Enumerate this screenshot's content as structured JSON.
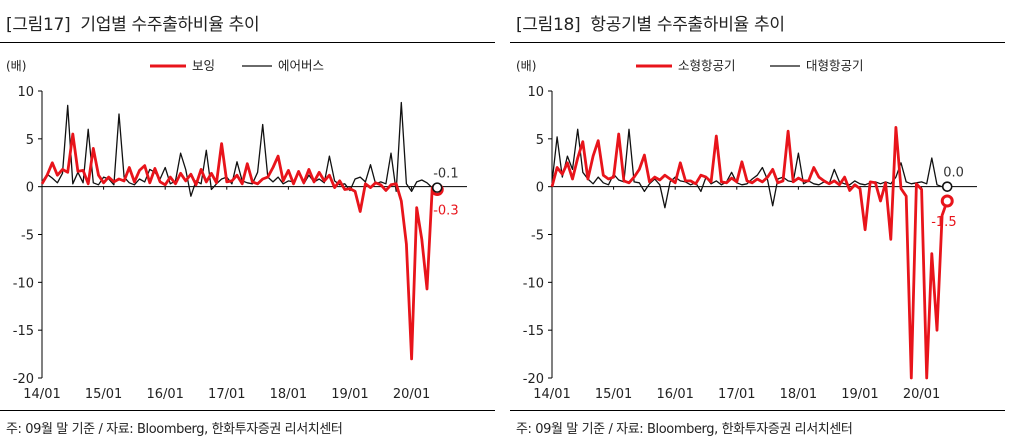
{
  "panels": [
    {
      "fig": "[그림17]",
      "title": "기업별 수주출하비율 추이",
      "note": "주: 09월 말 기준  / 자료: Bloomberg, 한화투자증권 리서치센터"
    },
    {
      "fig": "[그림18]",
      "title": "항공기별 수주출하비율 추이",
      "note": "주: 09월 말 기준  / 자료: Bloomberg, 한화투자증권 리서치센터"
    }
  ],
  "chart_data": [
    {
      "type": "line",
      "yunit": "(배)",
      "ylim": [
        -20,
        10
      ],
      "yticks": [
        10,
        5,
        0,
        -5,
        -10,
        -15,
        -20
      ],
      "xticks": [
        "14/01",
        "15/01",
        "16/01",
        "17/01",
        "18/01",
        "19/01",
        "20/01"
      ],
      "x_start": "2014-01",
      "legend": "top",
      "series": [
        {
          "name": "보잉",
          "color": "#e8141b",
          "end_label": "-0.3",
          "values": [
            0.3,
            1.2,
            2.5,
            1.2,
            1.8,
            1.5,
            5.5,
            1.6,
            1.7,
            0.3,
            4.0,
            1.2,
            0.4,
            1.0,
            0.5,
            0.8,
            0.6,
            2.0,
            0.5,
            1.7,
            2.2,
            0.4,
            1.9,
            0.5,
            0.2,
            1.0,
            0.3,
            1.4,
            0.6,
            1.3,
            0.2,
            1.8,
            0.5,
            1.4,
            0.4,
            4.5,
            0.5,
            0.6,
            1.2,
            0.3,
            2.4,
            0.5,
            0.3,
            0.8,
            1.0,
            2.0,
            3.2,
            0.6,
            1.7,
            0.3,
            1.6,
            0.4,
            1.8,
            0.5,
            1.5,
            0.6,
            1.2,
            -0.1,
            0.6,
            -0.3,
            -0.2,
            -0.5,
            -2.6,
            0.3,
            -0.1,
            0.4,
            0.2,
            -0.4,
            0.2,
            0.3,
            -1.5,
            -6.0,
            -18.0,
            -2.2,
            -5.5,
            -10.7,
            -0.4,
            -0.3
          ]
        },
        {
          "name": "에어버스",
          "color": "#111111",
          "end_label": "-0.1",
          "values": [
            0.5,
            1.3,
            0.9,
            0.4,
            1.4,
            8.5,
            0.3,
            1.5,
            0.4,
            6.0,
            0.4,
            0.2,
            1.0,
            0.8,
            0.2,
            7.6,
            1.0,
            0.4,
            0.2,
            0.8,
            0.5,
            1.8,
            1.5,
            0.8,
            2.0,
            0.3,
            0.6,
            3.5,
            1.8,
            -1.0,
            0.6,
            0.3,
            3.8,
            -0.3,
            0.3,
            0.8,
            1.0,
            0.3,
            2.6,
            0.6,
            0.4,
            0.3,
            1.5,
            6.5,
            1.0,
            0.5,
            1.0,
            0.3,
            0.6,
            0.5,
            1.6,
            0.3,
            1.2,
            0.5,
            0.8,
            0.4,
            3.2,
            0.6,
            0.2,
            0.3,
            -0.4,
            0.8,
            1.0,
            0.5,
            2.3,
            0.3,
            0.5,
            0.3,
            3.5,
            -0.5,
            8.8,
            0.3,
            -0.5,
            0.5,
            0.7,
            0.4,
            -0.1,
            -0.1
          ]
        }
      ]
    },
    {
      "type": "line",
      "yunit": "(배)",
      "ylim": [
        -20,
        10
      ],
      "yticks": [
        10,
        5,
        0,
        -5,
        -10,
        -15,
        -20
      ],
      "xticks": [
        "14/01",
        "15/01",
        "16/01",
        "17/01",
        "18/01",
        "19/01",
        "20/01"
      ],
      "x_start": "2014-01",
      "legend": "top",
      "series": [
        {
          "name": "소형항공기",
          "color": "#e8141b",
          "end_label": "-1.5",
          "values": [
            0.0,
            2.0,
            1.3,
            2.5,
            0.8,
            3.0,
            4.7,
            0.8,
            3.2,
            4.8,
            1.2,
            0.8,
            1.0,
            5.5,
            0.6,
            0.4,
            1.0,
            1.8,
            3.3,
            0.5,
            1.0,
            0.7,
            1.2,
            0.8,
            0.4,
            2.5,
            0.6,
            0.6,
            0.3,
            1.2,
            1.0,
            0.5,
            5.3,
            0.5,
            0.4,
            0.9,
            0.5,
            2.6,
            0.6,
            0.4,
            0.8,
            0.5,
            1.0,
            1.8,
            0.4,
            0.6,
            5.8,
            0.5,
            0.9,
            0.6,
            0.6,
            2.0,
            1.0,
            0.6,
            0.3,
            0.6,
            0.2,
            1.0,
            -0.4,
            0.2,
            -0.2,
            -4.5,
            0.5,
            0.4,
            -1.5,
            0.4,
            -5.5,
            6.2,
            -0.2,
            -1.0,
            -20.0,
            0.3,
            -0.3,
            -20.0,
            -7.0,
            -15.0,
            -3.0,
            -1.5
          ]
        },
        {
          "name": "대형항공기",
          "color": "#111111",
          "end_label": "0.0",
          "values": [
            0.4,
            5.2,
            1.0,
            3.2,
            1.8,
            6.0,
            1.5,
            0.8,
            0.3,
            1.0,
            0.4,
            0.2,
            1.3,
            0.7,
            0.5,
            6.0,
            0.5,
            0.4,
            -0.5,
            0.3,
            0.8,
            0.2,
            -2.2,
            0.5,
            1.0,
            0.6,
            0.5,
            0.2,
            0.4,
            -0.5,
            1.0,
            0.3,
            0.6,
            0.2,
            0.5,
            1.5,
            0.4,
            0.2,
            0.3,
            0.8,
            1.2,
            2.0,
            0.7,
            -2.0,
            0.8,
            1.0,
            0.6,
            0.5,
            3.5,
            0.3,
            0.6,
            0.3,
            0.2,
            0.5,
            0.3,
            1.8,
            0.5,
            0.3,
            0.2,
            0.6,
            0.3,
            0.2,
            0.4,
            0.5,
            0.3,
            0.5,
            0.3,
            1.0,
            2.5,
            0.5,
            0.3,
            0.4,
            0.5,
            0.3,
            3.0,
            0.2,
            0.0,
            0.0
          ]
        }
      ]
    }
  ]
}
